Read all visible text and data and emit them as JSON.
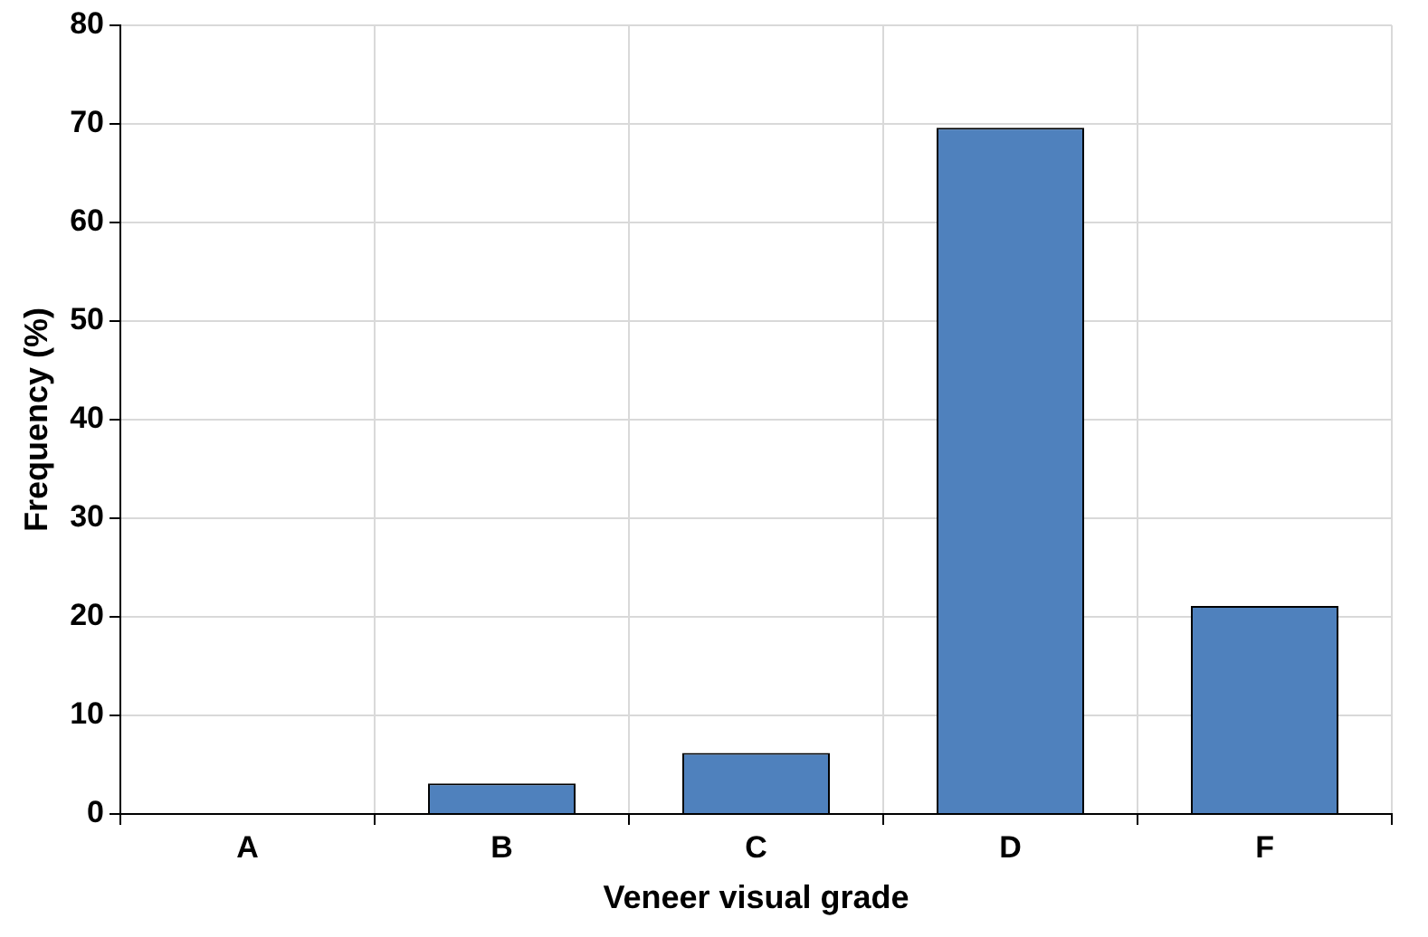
{
  "chart_data": {
    "type": "bar",
    "xlabel": "Veneer visual grade",
    "ylabel": "Frequency (%)",
    "categories": [
      "A",
      "B",
      "C",
      "D",
      "F"
    ],
    "values": [
      0,
      3.1,
      6.2,
      69.6,
      21.1
    ],
    "color": "#4f81bd",
    "ylim": [
      0,
      80
    ],
    "yticks": [
      0,
      10,
      20,
      30,
      40,
      50,
      60,
      70,
      80
    ],
    "grid": true
  }
}
